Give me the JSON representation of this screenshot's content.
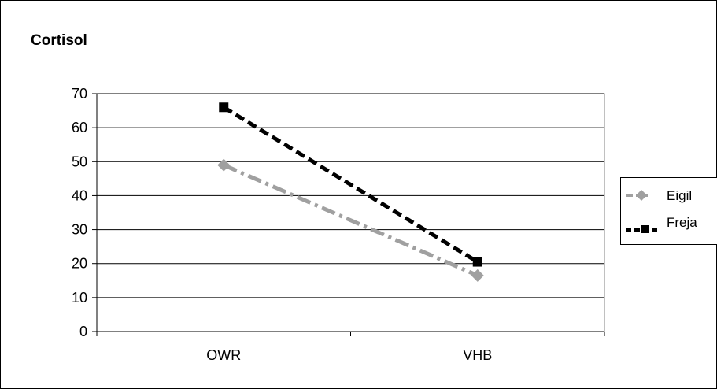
{
  "chart_data": {
    "type": "line",
    "title": "Cortisol",
    "categories": [
      "OWR",
      "VHB"
    ],
    "ylim": [
      0,
      70
    ],
    "yticks": [
      0,
      10,
      20,
      30,
      40,
      50,
      60,
      70
    ],
    "grid": true,
    "legend_position": "right",
    "series": [
      {
        "name": "Eigil",
        "values": [
          49,
          16.5
        ],
        "color": "#a0a0a0",
        "marker": "diamond",
        "dash": "dash-dot"
      },
      {
        "name": "Freja",
        "values": [
          66,
          20.5
        ],
        "color": "#000000",
        "marker": "square",
        "dash": "dash"
      }
    ]
  }
}
